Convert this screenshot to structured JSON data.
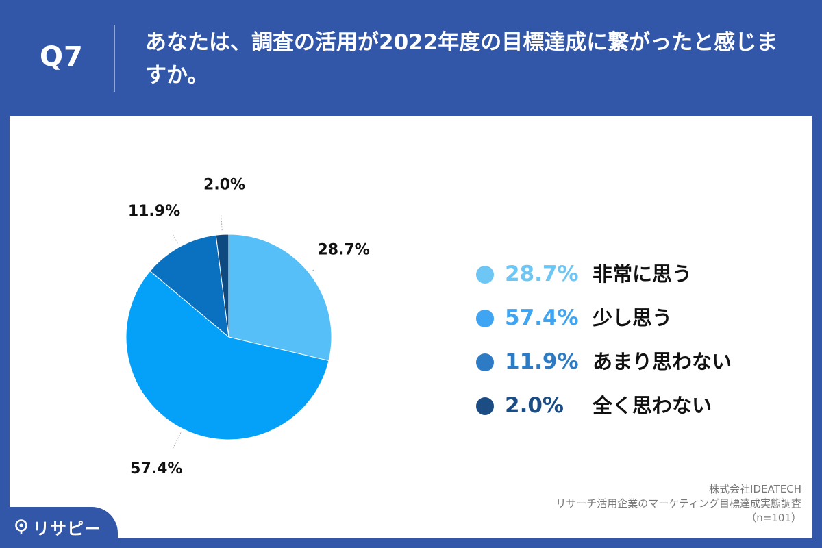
{
  "header": {
    "question_number": "Q7",
    "question_text": "あなたは、調査の活用が2022年度の目標達成に繋がったと感じますか。"
  },
  "chart_data": {
    "type": "pie",
    "categories": [
      "非常に思う",
      "少し思う",
      "あまり思わない",
      "全く思わない"
    ],
    "values": [
      28.7,
      57.4,
      11.9,
      2.0
    ],
    "value_labels": [
      "28.7%",
      "57.4%",
      "11.9%",
      "2.0%"
    ],
    "colors": [
      "#56bff8",
      "#05a0f8",
      "#0a71c0",
      "#0e4a80"
    ],
    "legend_colors": [
      "#6ec6f5",
      "#3fa5f3",
      "#2d7bc4",
      "#1b4d84"
    ],
    "start_angle_deg": 0,
    "direction": "clockwise",
    "legend_placement": "right"
  },
  "legend": [
    {
      "value": "28.7%",
      "label": "非常に思う"
    },
    {
      "value": "57.4%",
      "label": "少し思う"
    },
    {
      "value": "11.9%",
      "label": "あまり思わない"
    },
    {
      "value": "2.0%",
      "label": "全く思わない"
    }
  ],
  "source": {
    "company": "株式会社IDEATECH",
    "survey": "リサーチ活用企業のマーケティング目標達成実態調査",
    "sample": "（n=101）"
  },
  "brand": {
    "name": "リサピー",
    "icon": "pin-icon"
  }
}
